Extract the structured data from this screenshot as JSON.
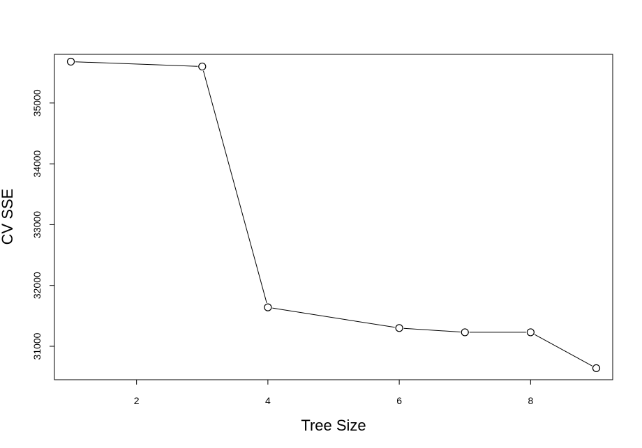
{
  "chart_data": {
    "type": "line",
    "title": "",
    "xlabel": "Tree Size",
    "ylabel": "CV SSE",
    "x": [
      1,
      3,
      4,
      6,
      7,
      8,
      9
    ],
    "y": [
      35680,
      35600,
      31640,
      31300,
      31230,
      31230,
      30640
    ],
    "xlim": [
      0.75,
      9.25
    ],
    "ylim": [
      30450,
      35800
    ],
    "x_ticks": [
      "2",
      "4",
      "6",
      "8"
    ],
    "y_ticks": [
      "31000",
      "32000",
      "33000",
      "34000",
      "35000"
    ],
    "marker": "open-circle",
    "line_color": "#000000",
    "grid": false,
    "legend": "none"
  }
}
